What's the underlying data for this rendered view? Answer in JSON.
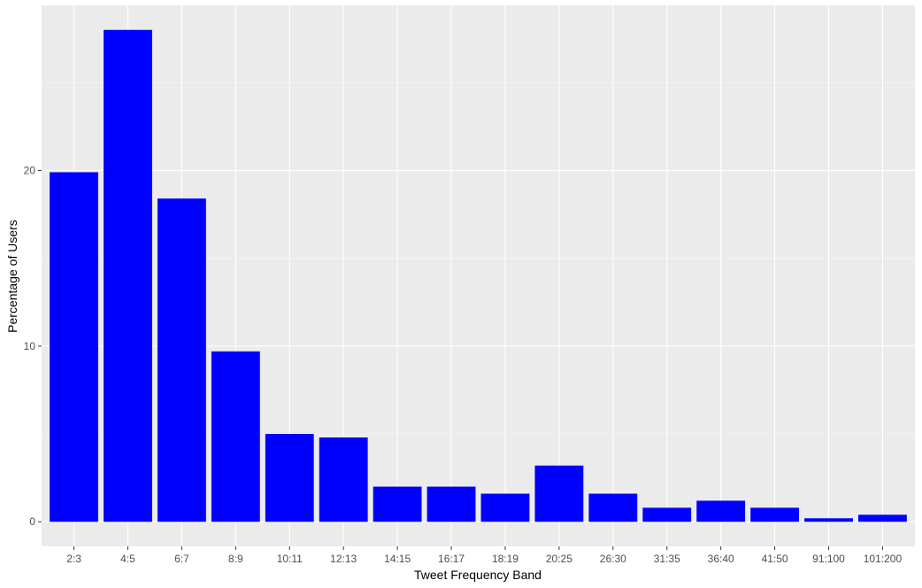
{
  "chart_data": {
    "type": "bar",
    "categories": [
      "2:3",
      "4:5",
      "6:7",
      "8:9",
      "10:11",
      "12:13",
      "14:15",
      "16:17",
      "18:19",
      "20:25",
      "26:30",
      "31:35",
      "36:40",
      "41:50",
      "91:100",
      "101:200"
    ],
    "values": [
      19.9,
      28.0,
      18.4,
      9.7,
      5.0,
      4.8,
      2.0,
      2.0,
      1.6,
      3.2,
      1.6,
      0.8,
      1.2,
      0.8,
      0.2,
      0.4
    ],
    "title": "",
    "xlabel": "Tweet Frequency Band",
    "ylabel": "Percentage of Users",
    "ylim": [
      -1.4,
      29.4
    ],
    "yticks": [
      0,
      10,
      20
    ],
    "grid": true,
    "colors": {
      "bar": "#0000ff",
      "panel": "#ebebeb",
      "grid_major": "#ffffff",
      "grid_minor": "#f5f5f5",
      "tick_label": "#4d4d4d"
    }
  }
}
